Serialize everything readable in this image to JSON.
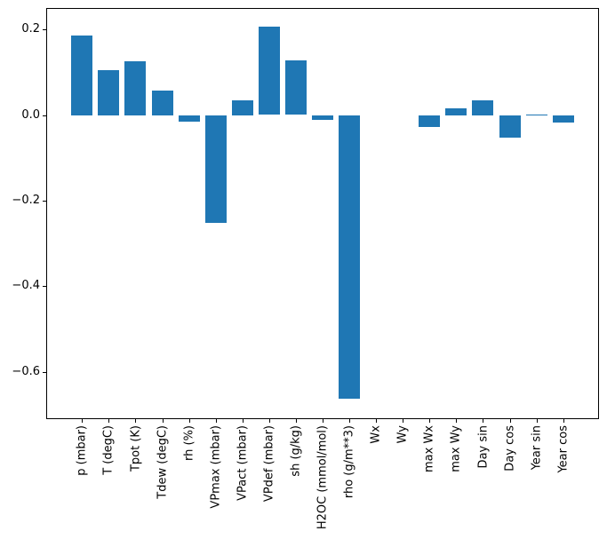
{
  "figure": {
    "background_color": "#ffffff"
  },
  "chart_data": {
    "type": "bar",
    "title": "",
    "xlabel": "",
    "ylabel": "",
    "categories": [
      "p (mbar)",
      "T (degC)",
      "Tpot (K)",
      "Tdew (degC)",
      "rh (%)",
      "VPmax (mbar)",
      "VPact (mbar)",
      "VPdef (mbar)",
      "sh (g/kg)",
      "H2OC (mmol/mol)",
      "rho (g/m**3)",
      "Wx",
      "Wy",
      "max Wx",
      "max Wy",
      "Day sin",
      "Day cos",
      "Year sin",
      "Year cos"
    ],
    "values": [
      0.186,
      0.106,
      0.125,
      0.058,
      -0.015,
      -0.252,
      0.034,
      0.207,
      0.128,
      -0.011,
      -0.662,
      0.0,
      0.0,
      -0.028,
      0.016,
      0.034,
      -0.053,
      0.002,
      -0.018
    ],
    "bar_color": "#1f77b4",
    "bar_width": 0.8,
    "yticks": [
      0.2,
      0.0,
      -0.2,
      -0.4,
      -0.6
    ],
    "ylim": [
      -0.71,
      0.25
    ],
    "xlim": [
      -1.34,
      19.34
    ],
    "tick_label_rotation": 90,
    "grid": false,
    "legend_position": "none"
  }
}
